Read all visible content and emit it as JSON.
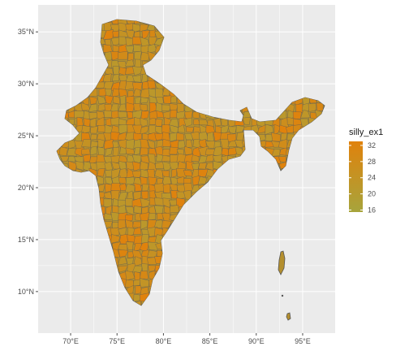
{
  "map": {
    "x_axis": {
      "ticks": [
        {
          "value": 70,
          "label": "70°E"
        },
        {
          "value": 75,
          "label": "75°E"
        },
        {
          "value": 80,
          "label": "80°E"
        },
        {
          "value": 85,
          "label": "85°E"
        },
        {
          "value": 90,
          "label": "90°E"
        },
        {
          "value": 95,
          "label": "95°E"
        }
      ],
      "range": [
        66.5,
        98.5
      ]
    },
    "y_axis": {
      "ticks": [
        {
          "value": 10,
          "label": "10°N"
        },
        {
          "value": 15,
          "label": "15°N"
        },
        {
          "value": 20,
          "label": "20°N"
        },
        {
          "value": 25,
          "label": "25°N"
        },
        {
          "value": 30,
          "label": "30°N"
        },
        {
          "value": 35,
          "label": "35°N"
        }
      ],
      "range": [
        6.0,
        37.6
      ]
    },
    "panel_background": "#ebebeb",
    "grid_color": "#ffffff",
    "border_color": "#4d4d4d",
    "legend": {
      "title": "silly_ex1",
      "placement": "right",
      "scale": [
        15.5,
        33
      ],
      "low_color": "#a7a43c",
      "high_color": "#e0820c",
      "breaks": [
        {
          "value": 32,
          "label": "32"
        },
        {
          "value": 28,
          "label": "28"
        },
        {
          "value": 24,
          "label": "24"
        },
        {
          "value": 20,
          "label": "20"
        },
        {
          "value": 16,
          "label": "16"
        }
      ]
    }
  }
}
